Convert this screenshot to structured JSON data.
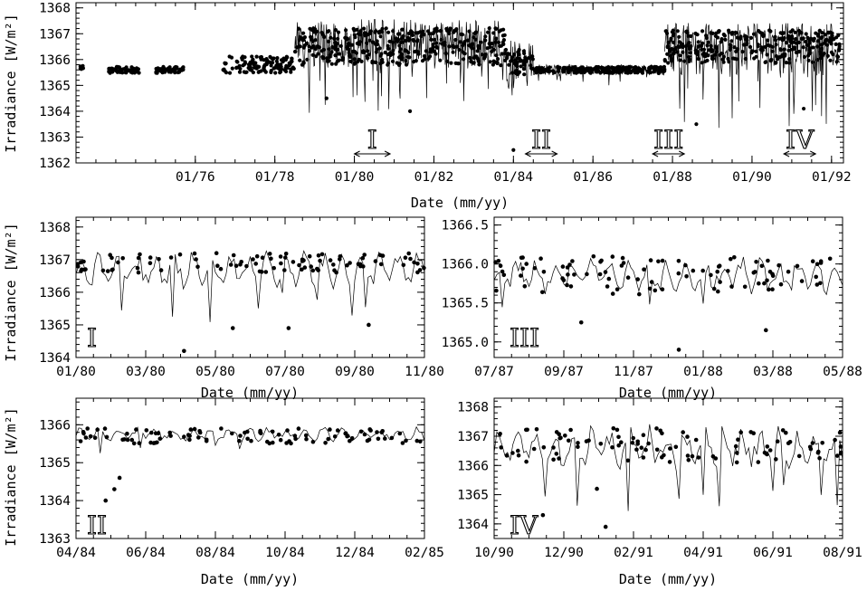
{
  "chart_data": [
    {
      "id": "full",
      "type": "scatter",
      "x_kind": "year",
      "xlabel": "Date (mm/yy)",
      "ylabel": "Irradiance [W/m²]",
      "xlim": [
        1973.0,
        1992.3
      ],
      "ylim": [
        1362.0,
        1368.2
      ],
      "xticks": [
        1976,
        1978,
        1980,
        1982,
        1984,
        1986,
        1988,
        1990,
        1992
      ],
      "xtick_labels": [
        "01/76",
        "01/78",
        "01/80",
        "01/82",
        "01/84",
        "01/86",
        "01/88",
        "01/90",
        "01/92"
      ],
      "yticks": [
        1362,
        1363,
        1364,
        1365,
        1366,
        1367,
        1368
      ],
      "intervals": [
        {
          "label": "I",
          "start": 1980.0,
          "end": 1980.9
        },
        {
          "label": "II",
          "start": 1984.3,
          "end": 1985.1
        },
        {
          "label": "III",
          "start": 1987.5,
          "end": 1988.3
        },
        {
          "label": "IV",
          "start": 1990.8,
          "end": 1991.6
        }
      ],
      "series": [
        {
          "kind": "dots",
          "segments": [
            {
              "x0": 1973.1,
              "x1": 1973.2,
              "level": 1365.7,
              "amp": 0.1
            },
            {
              "x0": 1973.8,
              "x1": 1974.6,
              "level": 1365.6,
              "amp": 0.15
            },
            {
              "x0": 1975.0,
              "x1": 1975.7,
              "level": 1365.6,
              "amp": 0.15
            },
            {
              "x0": 1976.7,
              "x1": 1978.5,
              "level": 1365.8,
              "amp": 0.4
            },
            {
              "x0": 1978.5,
              "x1": 1983.8,
              "level": 1366.5,
              "amp": 0.9
            },
            {
              "x0": 1983.8,
              "x1": 1984.5,
              "level": 1365.9,
              "amp": 0.6
            },
            {
              "x0": 1984.5,
              "x1": 1987.8,
              "level": 1365.6,
              "amp": 0.15
            },
            {
              "x0": 1987.8,
              "x1": 1992.2,
              "level": 1366.5,
              "amp": 0.8
            }
          ]
        },
        {
          "kind": "line",
          "segments": [
            {
              "x0": 1978.5,
              "x1": 1983.8,
              "level": 1366.6,
              "amp": 1.2
            },
            {
              "x0": 1983.8,
              "x1": 1984.5,
              "level": 1365.8,
              "amp": 1.2
            },
            {
              "x0": 1984.5,
              "x1": 1987.8,
              "level": 1365.6,
              "amp": 0.25
            },
            {
              "x0": 1987.8,
              "x1": 1992.2,
              "level": 1366.4,
              "amp": 1.3
            }
          ]
        }
      ],
      "dips": [
        {
          "x": 1984.0,
          "y": 1362.5
        },
        {
          "x": 1981.4,
          "y": 1364.0
        },
        {
          "x": 1988.6,
          "y": 1363.5
        },
        {
          "x": 1991.3,
          "y": 1364.1
        },
        {
          "x": 1979.3,
          "y": 1364.5
        }
      ]
    },
    {
      "id": "I",
      "type": "scatter",
      "x_kind": "month",
      "xlabel": "Date (mm/yy)",
      "ylabel": "Irradiance [W/m²]",
      "xlim": [
        0,
        10
      ],
      "ylim": [
        1364.0,
        1368.3
      ],
      "xticks": [
        0,
        2,
        4,
        6,
        8,
        10
      ],
      "xtick_labels": [
        "01/80",
        "03/80",
        "05/80",
        "07/80",
        "09/80",
        "11/80"
      ],
      "yticks": [
        1364,
        1365,
        1366,
        1367,
        1368
      ],
      "panel_label": "I",
      "series": [
        {
          "kind": "line",
          "level": 1366.7,
          "amp": 0.6
        },
        {
          "kind": "dots",
          "level": 1366.9,
          "amp": 0.3
        }
      ],
      "dips": [
        {
          "x": 3.1,
          "y": 1364.2
        },
        {
          "x": 4.5,
          "y": 1364.9
        },
        {
          "x": 6.1,
          "y": 1364.9
        },
        {
          "x": 8.4,
          "y": 1365.0
        }
      ]
    },
    {
      "id": "III",
      "type": "scatter",
      "x_kind": "month",
      "xlabel": "Date (mm/yy)",
      "ylabel": "",
      "xlim": [
        0,
        10
      ],
      "ylim": [
        1364.8,
        1366.6
      ],
      "xticks": [
        0,
        2,
        4,
        6,
        8,
        10
      ],
      "xtick_labels": [
        "07/87",
        "09/87",
        "11/87",
        "01/88",
        "03/88",
        "05/88"
      ],
      "yticks": [
        1365.0,
        1365.5,
        1366.0,
        1366.5
      ],
      "ytick_labels": [
        "1365.0",
        "1365.5",
        "1366.0",
        "1366.5"
      ],
      "panel_label": "III",
      "series": [
        {
          "kind": "line",
          "level": 1365.85,
          "amp": 0.25
        },
        {
          "kind": "dots",
          "level": 1365.85,
          "amp": 0.25
        }
      ],
      "dips": [
        {
          "x": 5.3,
          "y": 1364.9
        },
        {
          "x": 7.8,
          "y": 1365.15
        },
        {
          "x": 2.5,
          "y": 1365.25
        }
      ]
    },
    {
      "id": "II",
      "type": "scatter",
      "x_kind": "month",
      "xlabel": "Date (mm/yy)",
      "ylabel": "Irradiance [W/m²]",
      "xlim": [
        0,
        10
      ],
      "ylim": [
        1363.0,
        1366.7
      ],
      "xticks": [
        0,
        2,
        4,
        6,
        8,
        10
      ],
      "xtick_labels": [
        "04/84",
        "06/84",
        "08/84",
        "10/84",
        "12/84",
        "02/85"
      ],
      "yticks": [
        1363,
        1364,
        1365,
        1366
      ],
      "panel_label": "II",
      "series": [
        {
          "kind": "line",
          "level": 1365.75,
          "amp": 0.2
        },
        {
          "kind": "dots",
          "level": 1365.7,
          "amp": 0.2
        }
      ],
      "dips": [
        {
          "x": 0.85,
          "y": 1364.0
        },
        {
          "x": 1.1,
          "y": 1364.3
        },
        {
          "x": 1.25,
          "y": 1364.6
        }
      ]
    },
    {
      "id": "IV",
      "type": "scatter",
      "x_kind": "month",
      "xlabel": "Date (mm/yy)",
      "ylabel": "",
      "xlim": [
        0,
        10
      ],
      "ylim": [
        1363.5,
        1368.3
      ],
      "xticks": [
        0,
        2,
        4,
        6,
        8,
        10
      ],
      "xtick_labels": [
        "10/90",
        "12/90",
        "02/91",
        "04/91",
        "06/91",
        "08/91"
      ],
      "yticks": [
        1364,
        1365,
        1366,
        1367,
        1368
      ],
      "panel_label": "IV",
      "series": [
        {
          "kind": "line",
          "level": 1366.6,
          "amp": 0.8
        },
        {
          "kind": "dots",
          "level": 1366.7,
          "amp": 0.6
        }
      ],
      "dips": [
        {
          "x": 1.4,
          "y": 1364.3
        },
        {
          "x": 3.2,
          "y": 1363.9
        },
        {
          "x": 2.95,
          "y": 1365.2
        }
      ]
    }
  ]
}
